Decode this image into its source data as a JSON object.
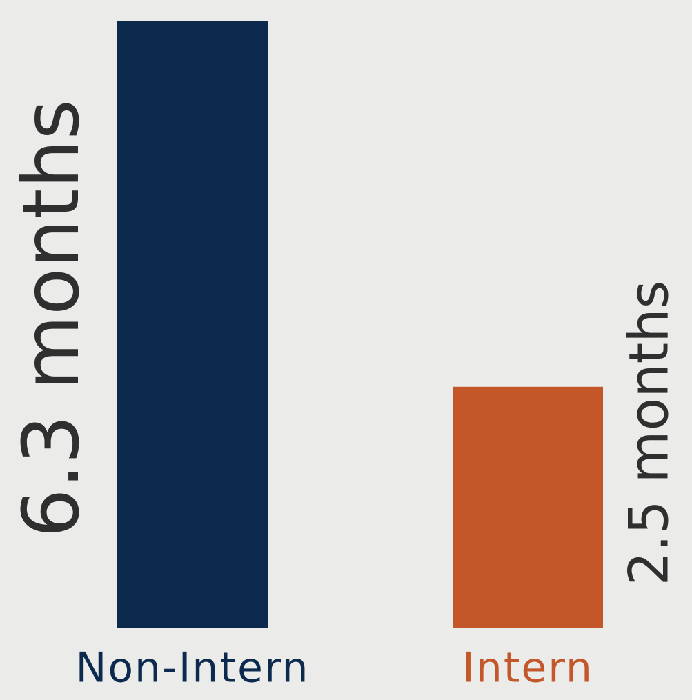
{
  "chart_data": {
    "type": "bar",
    "categories": [
      "Non-Intern",
      "Intern"
    ],
    "values": [
      6.3,
      2.5
    ],
    "value_labels": [
      "6.3 months",
      "2.5 months"
    ],
    "colors": [
      "#0b2a4e",
      "#c4572a"
    ]
  }
}
